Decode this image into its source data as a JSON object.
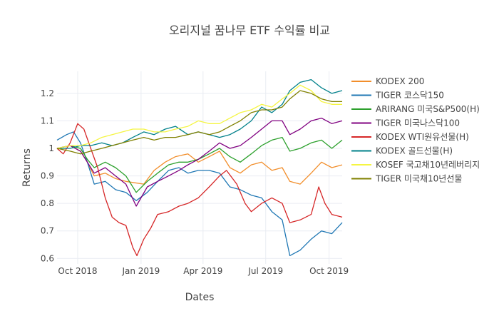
{
  "chart_data": {
    "type": "line",
    "title": "오리지널 꿈나무 ETF 수익률 비교",
    "xlabel": "Dates",
    "ylabel": "Returns",
    "x_range": [
      "2018-09-01",
      "2019-10-20"
    ],
    "ylim": [
      0.58,
      1.28
    ],
    "x_ticks": [
      {
        "date": "2018-10-01",
        "label": "Oct 2018"
      },
      {
        "date": "2019-01-01",
        "label": "Jan 2019"
      },
      {
        "date": "2019-04-01",
        "label": "Apr 2019"
      },
      {
        "date": "2019-07-01",
        "label": "Jul 2019"
      },
      {
        "date": "2019-10-01",
        "label": "Oct 2019"
      }
    ],
    "y_ticks": [
      {
        "value": 0.6,
        "label": "0.6"
      },
      {
        "value": 0.7,
        "label": "0.7"
      },
      {
        "value": 0.8,
        "label": "0.8"
      },
      {
        "value": 0.9,
        "label": "0.9"
      },
      {
        "value": 1.0,
        "label": "1"
      },
      {
        "value": 1.1,
        "label": "1.1"
      },
      {
        "value": 1.2,
        "label": "1.2"
      }
    ],
    "grid": true,
    "legend_position": "right",
    "series": [
      {
        "name": "KODEX 200",
        "color": "#f28e2b",
        "points": [
          [
            "2018-09-01",
            1.0
          ],
          [
            "2018-09-20",
            1.01
          ],
          [
            "2018-10-05",
            0.99
          ],
          [
            "2018-10-15",
            0.95
          ],
          [
            "2018-10-25",
            0.9
          ],
          [
            "2018-11-10",
            0.91
          ],
          [
            "2018-11-25",
            0.89
          ],
          [
            "2018-12-10",
            0.88
          ],
          [
            "2019-01-05",
            0.87
          ],
          [
            "2019-01-20",
            0.92
          ],
          [
            "2019-02-05",
            0.95
          ],
          [
            "2019-02-20",
            0.97
          ],
          [
            "2019-03-10",
            0.98
          ],
          [
            "2019-03-25",
            0.95
          ],
          [
            "2019-04-10",
            0.97
          ],
          [
            "2019-04-25",
            0.99
          ],
          [
            "2019-05-10",
            0.93
          ],
          [
            "2019-05-25",
            0.91
          ],
          [
            "2019-06-10",
            0.94
          ],
          [
            "2019-06-25",
            0.95
          ],
          [
            "2019-07-10",
            0.92
          ],
          [
            "2019-07-25",
            0.93
          ],
          [
            "2019-08-05",
            0.88
          ],
          [
            "2019-08-20",
            0.87
          ],
          [
            "2019-09-05",
            0.91
          ],
          [
            "2019-09-20",
            0.95
          ],
          [
            "2019-10-05",
            0.93
          ],
          [
            "2019-10-20",
            0.94
          ]
        ]
      },
      {
        "name": "TIGER 코스닥150",
        "color": "#1f77b4",
        "points": [
          [
            "2018-09-01",
            1.03
          ],
          [
            "2018-09-15",
            1.05
          ],
          [
            "2018-09-25",
            1.06
          ],
          [
            "2018-10-05",
            1.02
          ],
          [
            "2018-10-15",
            0.95
          ],
          [
            "2018-10-25",
            0.87
          ],
          [
            "2018-11-10",
            0.88
          ],
          [
            "2018-11-25",
            0.85
          ],
          [
            "2018-12-10",
            0.84
          ],
          [
            "2018-12-25",
            0.81
          ],
          [
            "2019-01-10",
            0.84
          ],
          [
            "2019-01-25",
            0.88
          ],
          [
            "2019-02-10",
            0.92
          ],
          [
            "2019-02-25",
            0.93
          ],
          [
            "2019-03-10",
            0.91
          ],
          [
            "2019-03-25",
            0.92
          ],
          [
            "2019-04-10",
            0.92
          ],
          [
            "2019-04-25",
            0.91
          ],
          [
            "2019-05-10",
            0.86
          ],
          [
            "2019-05-25",
            0.85
          ],
          [
            "2019-06-10",
            0.83
          ],
          [
            "2019-06-25",
            0.82
          ],
          [
            "2019-07-10",
            0.77
          ],
          [
            "2019-07-25",
            0.74
          ],
          [
            "2019-08-05",
            0.61
          ],
          [
            "2019-08-20",
            0.63
          ],
          [
            "2019-09-05",
            0.67
          ],
          [
            "2019-09-20",
            0.7
          ],
          [
            "2019-10-05",
            0.69
          ],
          [
            "2019-10-20",
            0.73
          ]
        ]
      },
      {
        "name": "ARIRANG 미국S&P500(H)",
        "color": "#2ca02c",
        "points": [
          [
            "2018-09-01",
            1.0
          ],
          [
            "2018-09-20",
            1.01
          ],
          [
            "2018-10-05",
            1.0
          ],
          [
            "2018-10-15",
            0.96
          ],
          [
            "2018-10-25",
            0.93
          ],
          [
            "2018-11-10",
            0.95
          ],
          [
            "2018-11-25",
            0.93
          ],
          [
            "2018-12-10",
            0.9
          ],
          [
            "2018-12-25",
            0.84
          ],
          [
            "2019-01-10",
            0.88
          ],
          [
            "2019-01-25",
            0.91
          ],
          [
            "2019-02-10",
            0.94
          ],
          [
            "2019-02-25",
            0.95
          ],
          [
            "2019-03-10",
            0.95
          ],
          [
            "2019-03-25",
            0.96
          ],
          [
            "2019-04-10",
            0.98
          ],
          [
            "2019-04-25",
            1.0
          ],
          [
            "2019-05-10",
            0.97
          ],
          [
            "2019-05-25",
            0.95
          ],
          [
            "2019-06-10",
            0.98
          ],
          [
            "2019-06-25",
            1.01
          ],
          [
            "2019-07-10",
            1.03
          ],
          [
            "2019-07-25",
            1.04
          ],
          [
            "2019-08-05",
            0.99
          ],
          [
            "2019-08-20",
            1.0
          ],
          [
            "2019-09-05",
            1.02
          ],
          [
            "2019-09-20",
            1.03
          ],
          [
            "2019-10-05",
            1.0
          ],
          [
            "2019-10-20",
            1.03
          ]
        ]
      },
      {
        "name": "TIGER 미국나스닥100",
        "color": "#800080",
        "points": [
          [
            "2018-09-01",
            1.0
          ],
          [
            "2018-09-20",
            1.01
          ],
          [
            "2018-10-05",
            0.99
          ],
          [
            "2018-10-15",
            0.95
          ],
          [
            "2018-10-25",
            0.91
          ],
          [
            "2018-11-10",
            0.93
          ],
          [
            "2018-11-25",
            0.9
          ],
          [
            "2018-12-10",
            0.87
          ],
          [
            "2018-12-25",
            0.79
          ],
          [
            "2019-01-10",
            0.86
          ],
          [
            "2019-01-25",
            0.88
          ],
          [
            "2019-02-10",
            0.9
          ],
          [
            "2019-02-25",
            0.92
          ],
          [
            "2019-03-10",
            0.94
          ],
          [
            "2019-03-25",
            0.96
          ],
          [
            "2019-04-10",
            0.99
          ],
          [
            "2019-04-25",
            1.02
          ],
          [
            "2019-05-10",
            1.0
          ],
          [
            "2019-05-25",
            1.01
          ],
          [
            "2019-06-10",
            1.04
          ],
          [
            "2019-06-25",
            1.07
          ],
          [
            "2019-07-10",
            1.1
          ],
          [
            "2019-07-25",
            1.1
          ],
          [
            "2019-08-05",
            1.05
          ],
          [
            "2019-08-20",
            1.07
          ],
          [
            "2019-09-05",
            1.1
          ],
          [
            "2019-09-20",
            1.11
          ],
          [
            "2019-10-05",
            1.09
          ],
          [
            "2019-10-20",
            1.1
          ]
        ]
      },
      {
        "name": "KODEX WTI원유선물(H)",
        "color": "#d62728",
        "points": [
          [
            "2018-09-01",
            1.0
          ],
          [
            "2018-09-10",
            0.98
          ],
          [
            "2018-09-20",
            1.02
          ],
          [
            "2018-10-01",
            1.09
          ],
          [
            "2018-10-10",
            1.07
          ],
          [
            "2018-10-20",
            1.0
          ],
          [
            "2018-10-30",
            0.93
          ],
          [
            "2018-11-10",
            0.82
          ],
          [
            "2018-11-20",
            0.75
          ],
          [
            "2018-11-30",
            0.73
          ],
          [
            "2018-12-10",
            0.72
          ],
          [
            "2018-12-20",
            0.64
          ],
          [
            "2018-12-26",
            0.61
          ],
          [
            "2019-01-05",
            0.67
          ],
          [
            "2019-01-15",
            0.71
          ],
          [
            "2019-01-25",
            0.76
          ],
          [
            "2019-02-10",
            0.77
          ],
          [
            "2019-02-25",
            0.79
          ],
          [
            "2019-03-10",
            0.8
          ],
          [
            "2019-03-25",
            0.82
          ],
          [
            "2019-04-10",
            0.86
          ],
          [
            "2019-04-25",
            0.9
          ],
          [
            "2019-05-05",
            0.92
          ],
          [
            "2019-05-20",
            0.87
          ],
          [
            "2019-06-01",
            0.8
          ],
          [
            "2019-06-10",
            0.77
          ],
          [
            "2019-06-25",
            0.8
          ],
          [
            "2019-07-10",
            0.82
          ],
          [
            "2019-07-25",
            0.8
          ],
          [
            "2019-08-05",
            0.73
          ],
          [
            "2019-08-20",
            0.74
          ],
          [
            "2019-09-05",
            0.76
          ],
          [
            "2019-09-16",
            0.86
          ],
          [
            "2019-09-25",
            0.8
          ],
          [
            "2019-10-05",
            0.76
          ],
          [
            "2019-10-20",
            0.75
          ]
        ]
      },
      {
        "name": "KODEX 골드선물(H)",
        "color": "#00808a",
        "points": [
          [
            "2018-09-01",
            1.0
          ],
          [
            "2018-09-20",
            1.0
          ],
          [
            "2018-10-05",
            1.01
          ],
          [
            "2018-10-20",
            1.01
          ],
          [
            "2018-11-05",
            1.02
          ],
          [
            "2018-11-20",
            1.01
          ],
          [
            "2018-12-05",
            1.02
          ],
          [
            "2018-12-20",
            1.04
          ],
          [
            "2019-01-05",
            1.06
          ],
          [
            "2019-01-20",
            1.05
          ],
          [
            "2019-02-05",
            1.07
          ],
          [
            "2019-02-20",
            1.08
          ],
          [
            "2019-03-10",
            1.05
          ],
          [
            "2019-03-25",
            1.06
          ],
          [
            "2019-04-10",
            1.05
          ],
          [
            "2019-04-25",
            1.04
          ],
          [
            "2019-05-10",
            1.05
          ],
          [
            "2019-05-25",
            1.07
          ],
          [
            "2019-06-10",
            1.1
          ],
          [
            "2019-06-25",
            1.15
          ],
          [
            "2019-07-10",
            1.13
          ],
          [
            "2019-07-25",
            1.16
          ],
          [
            "2019-08-05",
            1.21
          ],
          [
            "2019-08-20",
            1.24
          ],
          [
            "2019-09-05",
            1.25
          ],
          [
            "2019-09-20",
            1.22
          ],
          [
            "2019-10-05",
            1.2
          ],
          [
            "2019-10-20",
            1.21
          ]
        ]
      },
      {
        "name": "KOSEF 국고채10년레버리지",
        "color": "#f5f542",
        "points": [
          [
            "2018-09-01",
            1.0
          ],
          [
            "2018-09-20",
            1.01
          ],
          [
            "2018-10-05",
            1.01
          ],
          [
            "2018-10-20",
            1.02
          ],
          [
            "2018-11-05",
            1.04
          ],
          [
            "2018-11-20",
            1.05
          ],
          [
            "2018-12-05",
            1.06
          ],
          [
            "2018-12-20",
            1.07
          ],
          [
            "2019-01-05",
            1.07
          ],
          [
            "2019-01-20",
            1.06
          ],
          [
            "2019-02-05",
            1.06
          ],
          [
            "2019-02-20",
            1.07
          ],
          [
            "2019-03-10",
            1.08
          ],
          [
            "2019-03-25",
            1.1
          ],
          [
            "2019-04-10",
            1.09
          ],
          [
            "2019-04-25",
            1.09
          ],
          [
            "2019-05-10",
            1.11
          ],
          [
            "2019-05-25",
            1.13
          ],
          [
            "2019-06-10",
            1.14
          ],
          [
            "2019-06-25",
            1.16
          ],
          [
            "2019-07-10",
            1.15
          ],
          [
            "2019-07-25",
            1.18
          ],
          [
            "2019-08-05",
            1.2
          ],
          [
            "2019-08-20",
            1.23
          ],
          [
            "2019-09-05",
            1.21
          ],
          [
            "2019-09-20",
            1.17
          ],
          [
            "2019-10-05",
            1.16
          ],
          [
            "2019-10-20",
            1.16
          ]
        ]
      },
      {
        "name": "TIGER 미국채10년선물",
        "color": "#808000",
        "points": [
          [
            "2018-09-01",
            1.0
          ],
          [
            "2018-09-20",
            0.99
          ],
          [
            "2018-10-05",
            0.98
          ],
          [
            "2018-10-20",
            0.99
          ],
          [
            "2018-11-05",
            1.0
          ],
          [
            "2018-11-20",
            1.01
          ],
          [
            "2018-12-05",
            1.02
          ],
          [
            "2018-12-20",
            1.03
          ],
          [
            "2019-01-05",
            1.04
          ],
          [
            "2019-01-20",
            1.03
          ],
          [
            "2019-02-05",
            1.04
          ],
          [
            "2019-02-20",
            1.04
          ],
          [
            "2019-03-10",
            1.05
          ],
          [
            "2019-03-25",
            1.06
          ],
          [
            "2019-04-10",
            1.05
          ],
          [
            "2019-04-25",
            1.06
          ],
          [
            "2019-05-10",
            1.08
          ],
          [
            "2019-05-25",
            1.1
          ],
          [
            "2019-06-10",
            1.13
          ],
          [
            "2019-06-25",
            1.14
          ],
          [
            "2019-07-10",
            1.14
          ],
          [
            "2019-07-25",
            1.15
          ],
          [
            "2019-08-05",
            1.18
          ],
          [
            "2019-08-20",
            1.21
          ],
          [
            "2019-09-05",
            1.2
          ],
          [
            "2019-09-20",
            1.18
          ],
          [
            "2019-10-05",
            1.17
          ],
          [
            "2019-10-20",
            1.17
          ]
        ]
      }
    ]
  }
}
